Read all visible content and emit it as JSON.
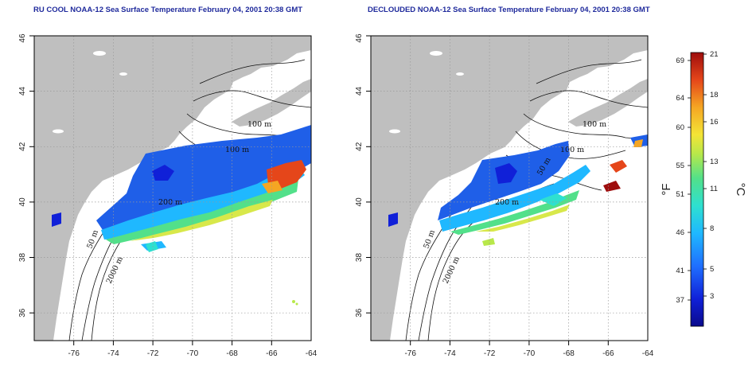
{
  "map_left": {
    "title": "RU COOL NOAA-12 Sea Surface Temperature February 04, 2001 20:38 GMT",
    "contour_labels": [
      "100 m",
      "100 m",
      "200 m",
      "50 m",
      "2000 m"
    ]
  },
  "map_right": {
    "title": "DECLOUDED NOAA-12 Sea Surface Temperature February 04, 2001 20:38 GMT",
    "contour_labels": [
      "100 m",
      "100 m",
      "50 m",
      "200 m",
      "50 m",
      "2000 m"
    ]
  },
  "axes": {
    "lon_ticks": [
      "-76",
      "-74",
      "-72",
      "-70",
      "-68",
      "-66",
      "-64"
    ],
    "lat_ticks": [
      "36",
      "38",
      "40",
      "42",
      "44",
      "46"
    ],
    "lon_range": [
      -77,
      -63
    ],
    "lat_range": [
      35,
      46
    ],
    "grid": "dotted"
  },
  "colorbar": {
    "unit_f": "°F",
    "unit_c": "°C",
    "f_ticks": [
      "69",
      "64",
      "60",
      "55",
      "51",
      "46",
      "41",
      "37"
    ],
    "c_ticks": [
      "21",
      "18",
      "16",
      "13",
      "11",
      "8",
      "5",
      "3"
    ],
    "colors": [
      "#0a0a8c",
      "#1020d8",
      "#1f6fff",
      "#1fb8ff",
      "#2ee0d0",
      "#52e08a",
      "#b8e84a",
      "#f4e436",
      "#f5a623",
      "#e5461a",
      "#9e0d0d"
    ]
  },
  "colors": {
    "land": "#bfbfbf",
    "ocean": "#ffffff",
    "title": "#1f2a9c"
  }
}
